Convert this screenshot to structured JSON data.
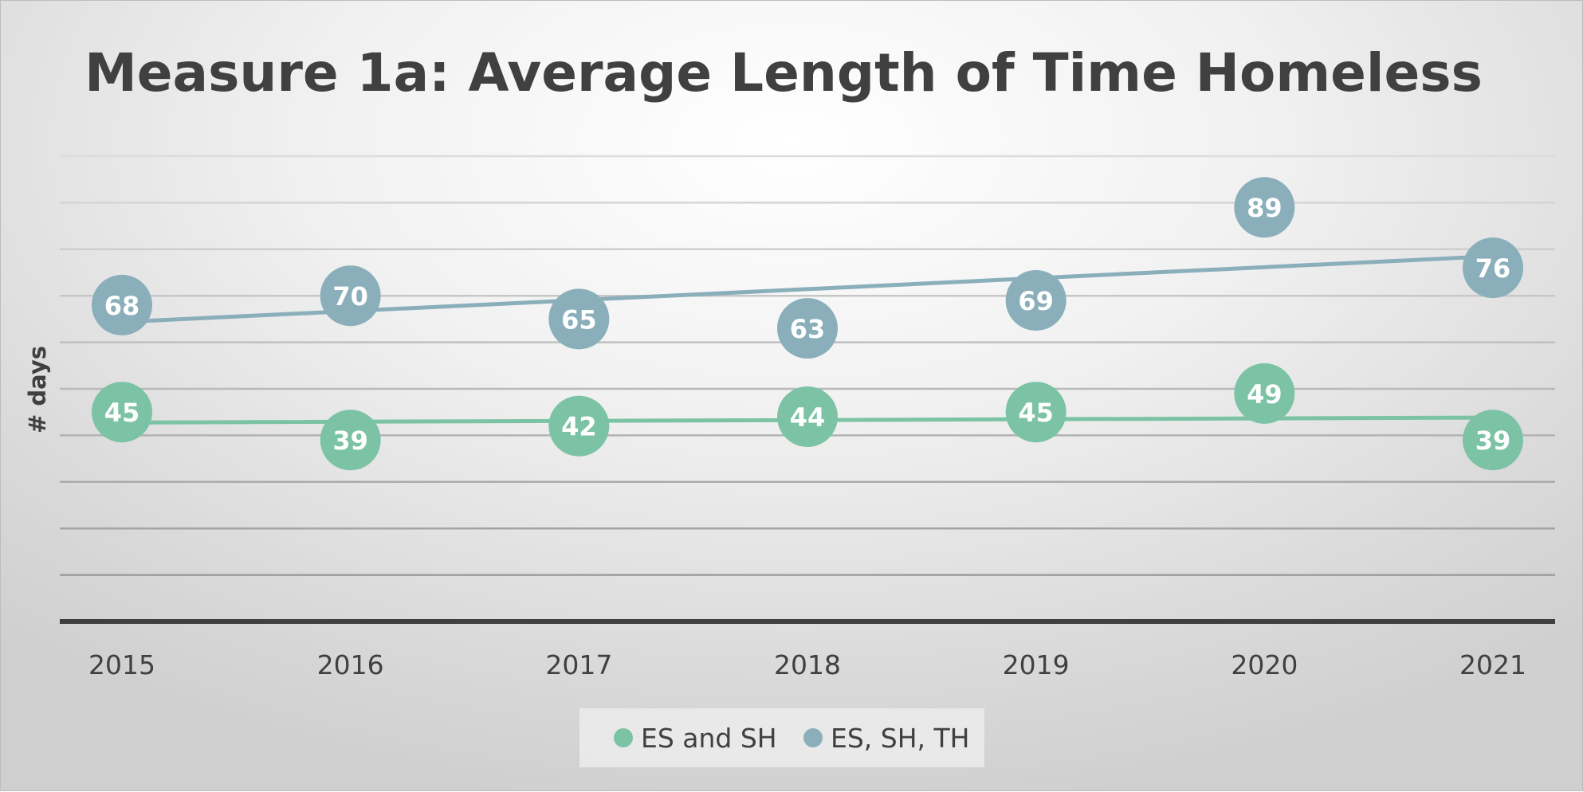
{
  "chart_data": {
    "type": "scatter",
    "title": "Measure 1a: Average Length of Time Homeless",
    "xlabel": "",
    "ylabel": "# days",
    "x": [
      2015,
      2016,
      2017,
      2018,
      2019,
      2020,
      2021
    ],
    "xlim": [
      2015,
      2021
    ],
    "ylim": [
      0,
      100
    ],
    "grid": true,
    "legend": "bottom",
    "trendline": "linear",
    "series": [
      {
        "name": "ES and SH",
        "color": "#7cc3a6",
        "values": [
          45,
          39,
          42,
          44,
          45,
          49,
          39
        ],
        "labels": [
          "45",
          "39",
          "42",
          "44",
          "45",
          "49",
          "39"
        ]
      },
      {
        "name": "ES, SH, TH",
        "color": "#8aafbb",
        "values": [
          68,
          70,
          65,
          63,
          69,
          89,
          76
        ],
        "labels": [
          "68",
          "70",
          "65",
          "63",
          "69",
          "89",
          "76"
        ]
      }
    ]
  }
}
